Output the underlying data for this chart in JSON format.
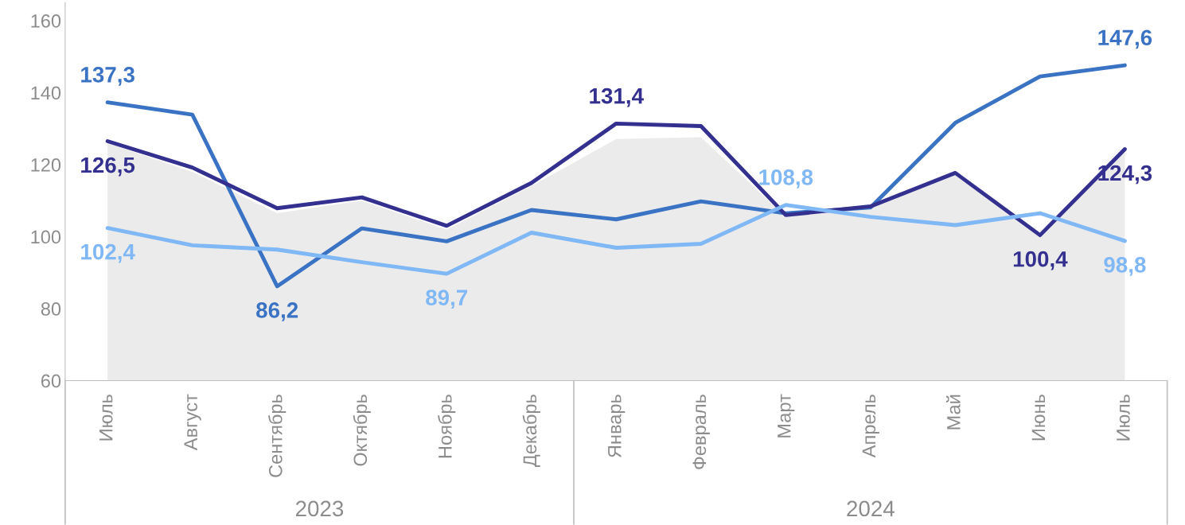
{
  "chart_data": {
    "type": "line",
    "categories": [
      "Июль",
      "Август",
      "Сентябрь",
      "Октябрь",
      "Ноябрь",
      "Декабрь",
      "Январь",
      "Февраль",
      "Март",
      "Апрель",
      "Май",
      "Июнь",
      "Июль"
    ],
    "series": [
      {
        "type": "area",
        "color": "#ebebeb",
        "values": [
          126.0,
          118.0,
          106.5,
          110.0,
          102.0,
          114.0,
          127.1,
          127.6,
          105.5,
          108.0,
          117.0,
          100.0,
          124.0
        ]
      },
      {
        "color": "#3a73c4",
        "values": [
          137.3,
          133.9,
          86.2,
          102.3,
          98.7,
          107.4,
          104.8,
          109.8,
          106.5,
          108.1,
          131.6,
          144.5,
          147.6
        ],
        "value_labels": [
          "137,3",
          null,
          "86,2",
          null,
          null,
          null,
          null,
          null,
          null,
          null,
          null,
          null,
          "147,6"
        ]
      },
      {
        "color": "#33308f",
        "values": [
          126.5,
          119.2,
          107.9,
          110.9,
          103.0,
          114.9,
          131.4,
          130.7,
          106.0,
          108.4,
          117.7,
          100.4,
          124.3
        ],
        "value_labels": [
          "126,5",
          null,
          null,
          null,
          null,
          null,
          "131,4",
          null,
          null,
          null,
          null,
          "100,4",
          "124,3"
        ]
      },
      {
        "color": "#7fb8f5",
        "values": [
          102.4,
          97.6,
          96.4,
          92.9,
          89.7,
          101.1,
          96.9,
          98.0,
          108.8,
          105.5,
          103.2,
          106.5,
          98.8
        ],
        "value_labels": [
          "102,4",
          null,
          null,
          null,
          "89,7",
          null,
          null,
          null,
          "108,8",
          null,
          null,
          null,
          "98,8"
        ]
      }
    ],
    "ylim": [
      60,
      165
    ],
    "yticks": [
      60,
      80,
      100,
      120,
      140,
      160
    ],
    "annotations": [
      "2023",
      "2024"
    ],
    "grid": false,
    "legend": false
  }
}
